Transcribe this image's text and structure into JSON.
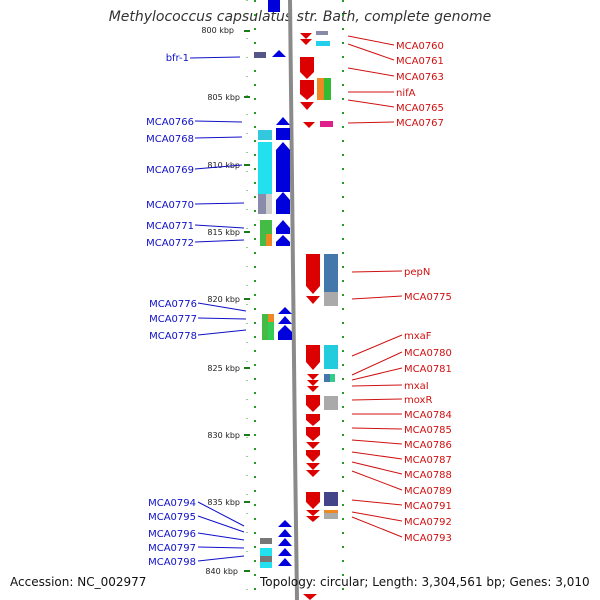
{
  "title": "Methylococcus capsulatus str. Bath, complete genome",
  "footer": {
    "accession": "Accession: NC_002977",
    "summary": "Topology: circular; Length: 3,304,561 bp; Genes: 3,010"
  },
  "colors": {
    "forward": "#d00000",
    "reverse": "#0000dd",
    "forward_label": "#d01010",
    "reverse_label": "#1010c8"
  },
  "ticks": [
    "800 kbp",
    "805 kbp",
    "810 kbp",
    "815 kbp",
    "820 kbp",
    "825 kbp",
    "830 kbp",
    "835 kbp",
    "840 kbp"
  ],
  "left_labels": [
    "bfr-1",
    "MCA0766",
    "MCA0768",
    "MCA0769",
    "MCA0770",
    "MCA0771",
    "MCA0772",
    "MCA0776",
    "MCA0777",
    "MCA0778",
    "MCA0794",
    "MCA0795",
    "MCA0796",
    "MCA0797",
    "MCA0798"
  ],
  "right_labels": [
    "MCA0760",
    "MCA0761",
    "MCA0763",
    "nifA",
    "MCA0765",
    "MCA0767",
    "pepN",
    "MCA0775",
    "mxaF",
    "MCA0780",
    "MCA0781",
    "mxaI",
    "moxR",
    "MCA0784",
    "MCA0785",
    "MCA0786",
    "MCA0787",
    "MCA0788",
    "MCA0789",
    "MCA0791",
    "MCA0792",
    "MCA0793"
  ]
}
